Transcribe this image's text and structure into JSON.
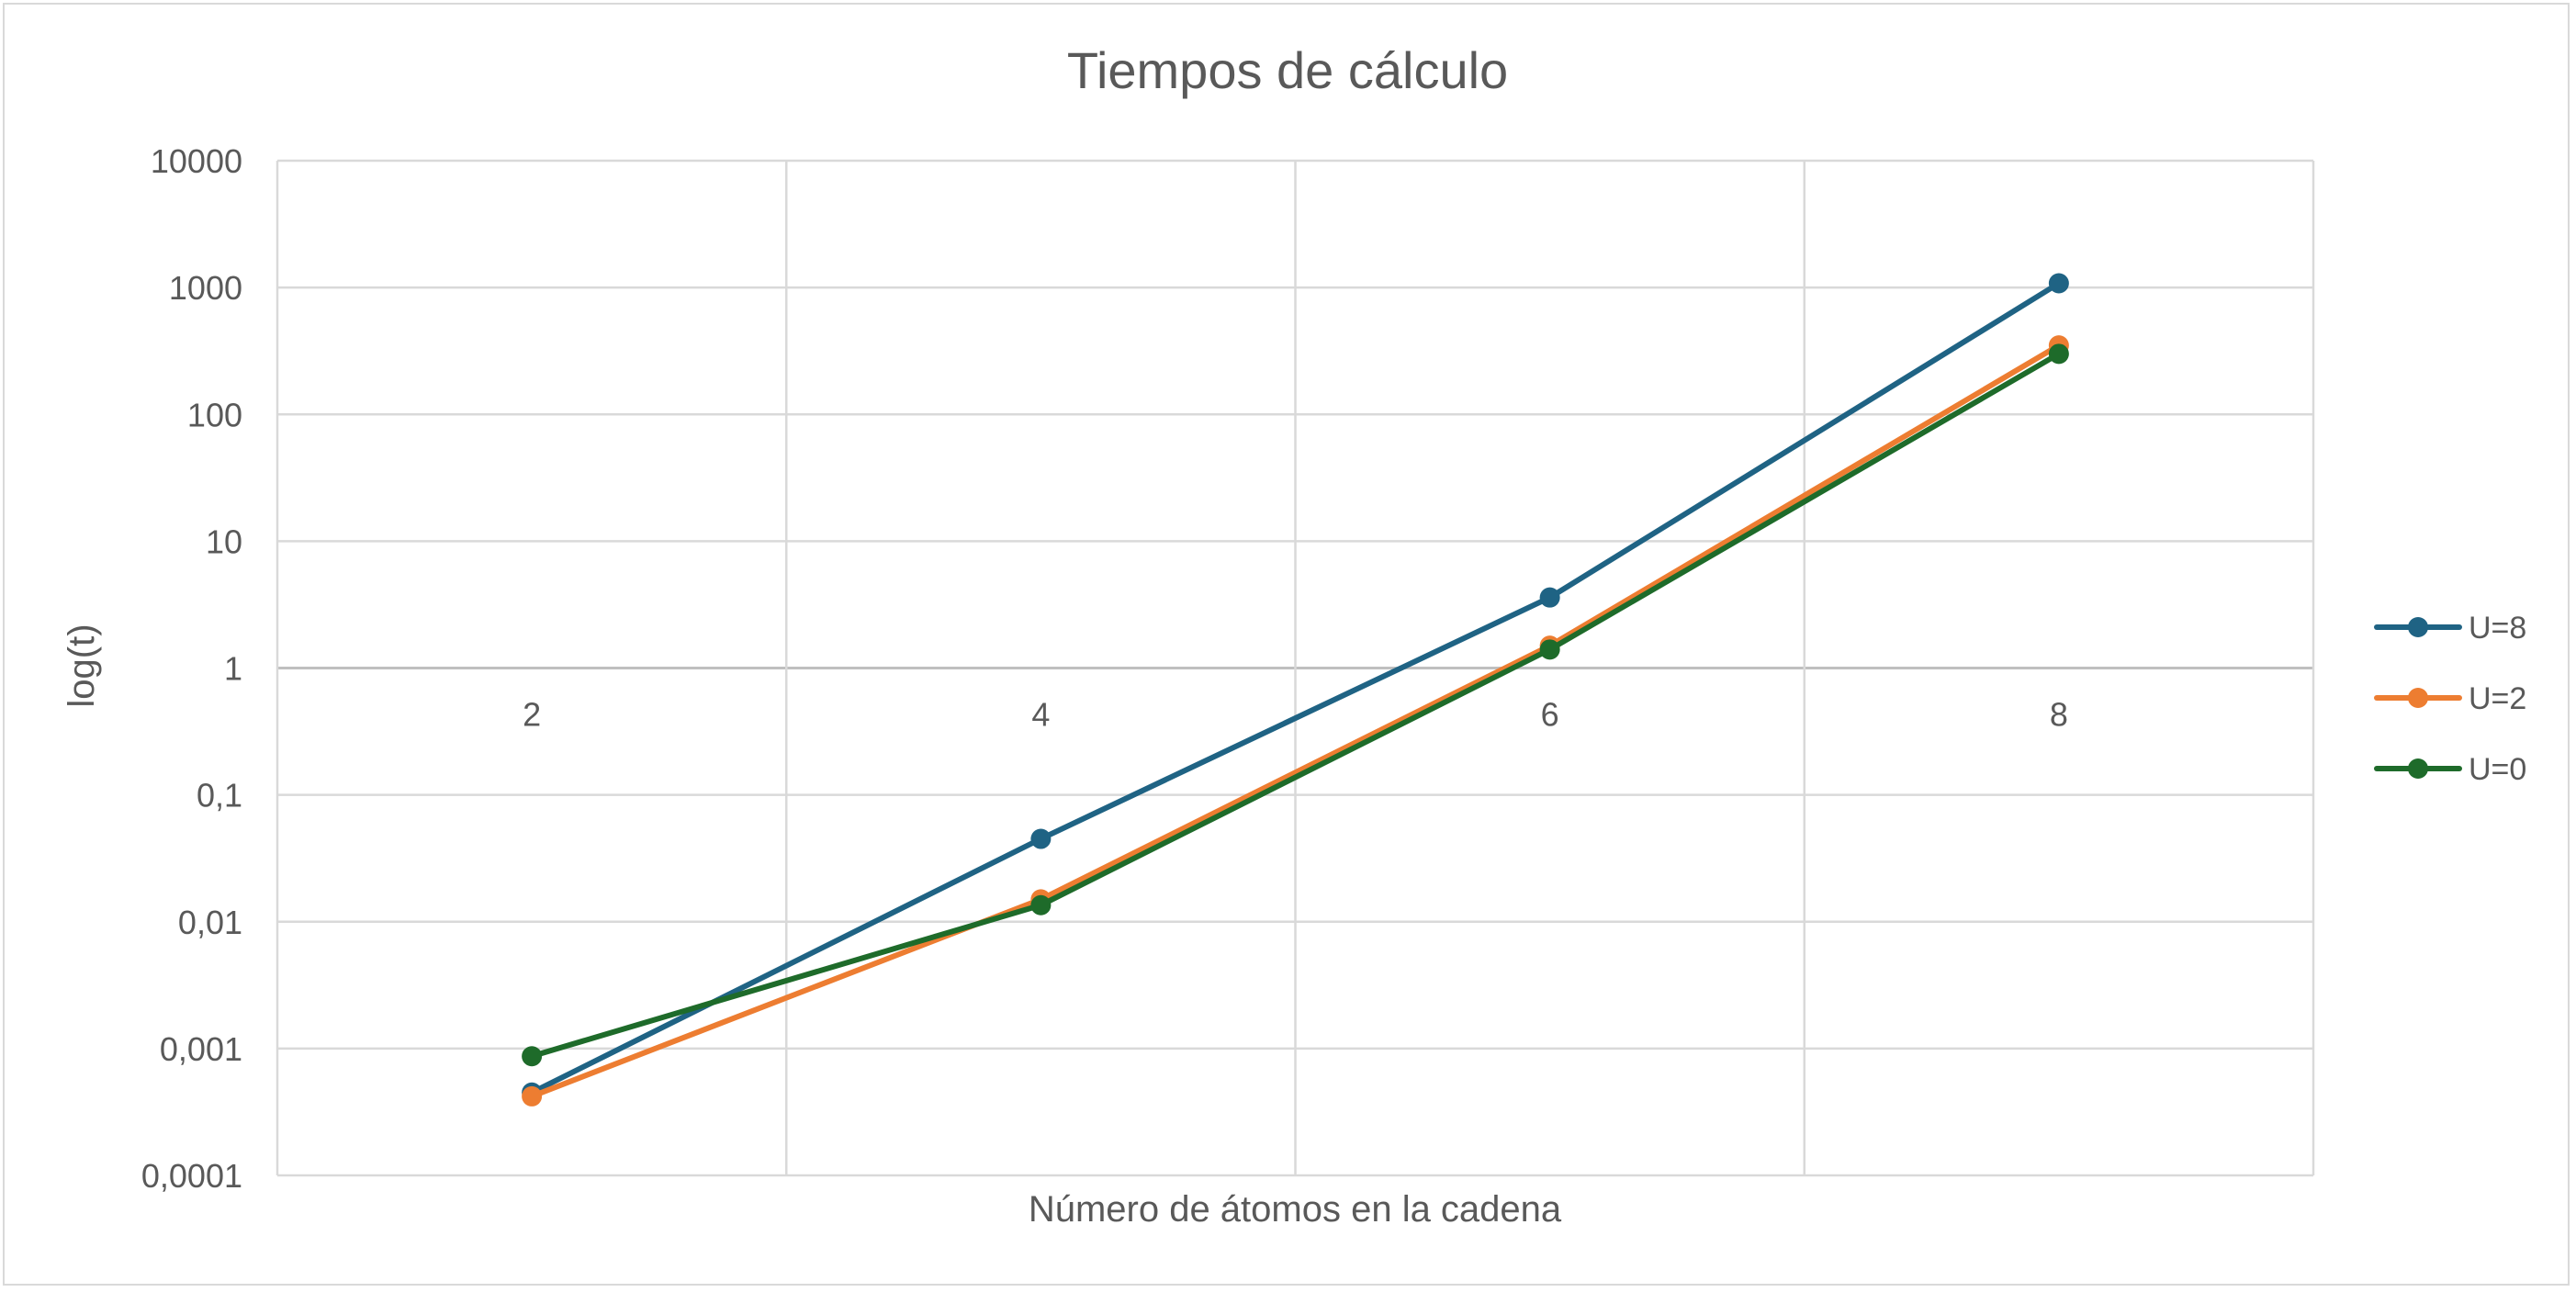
{
  "chart_data": {
    "type": "line",
    "title": "Tiempos de cálculo",
    "xlabel": "Número de átomos en la cadena",
    "ylabel": "log(t)",
    "y_scale": "log",
    "ylim": [
      0.0001,
      10000
    ],
    "y_ticks": [
      "10000",
      "1000",
      "100",
      "10",
      "1",
      "0,1",
      "0,01",
      "0,001",
      "0,0001"
    ],
    "y_tick_values": [
      10000,
      1000,
      100,
      10,
      1,
      0.1,
      0.01,
      0.001,
      0.0001
    ],
    "categories": [
      "2",
      "4",
      "6",
      "8"
    ],
    "x_axis_crosses_at": 1,
    "grid": true,
    "legend": "right",
    "series": [
      {
        "name": "U=8",
        "color": "#1f6384",
        "values": [
          0.00045,
          0.045,
          3.6,
          1080
        ]
      },
      {
        "name": "U=2",
        "color": "#ed7d31",
        "values": [
          0.00042,
          0.015,
          1.5,
          350
        ]
      },
      {
        "name": "U=0",
        "color": "#1e6b2a",
        "values": [
          0.00087,
          0.0135,
          1.4,
          300
        ]
      }
    ]
  }
}
